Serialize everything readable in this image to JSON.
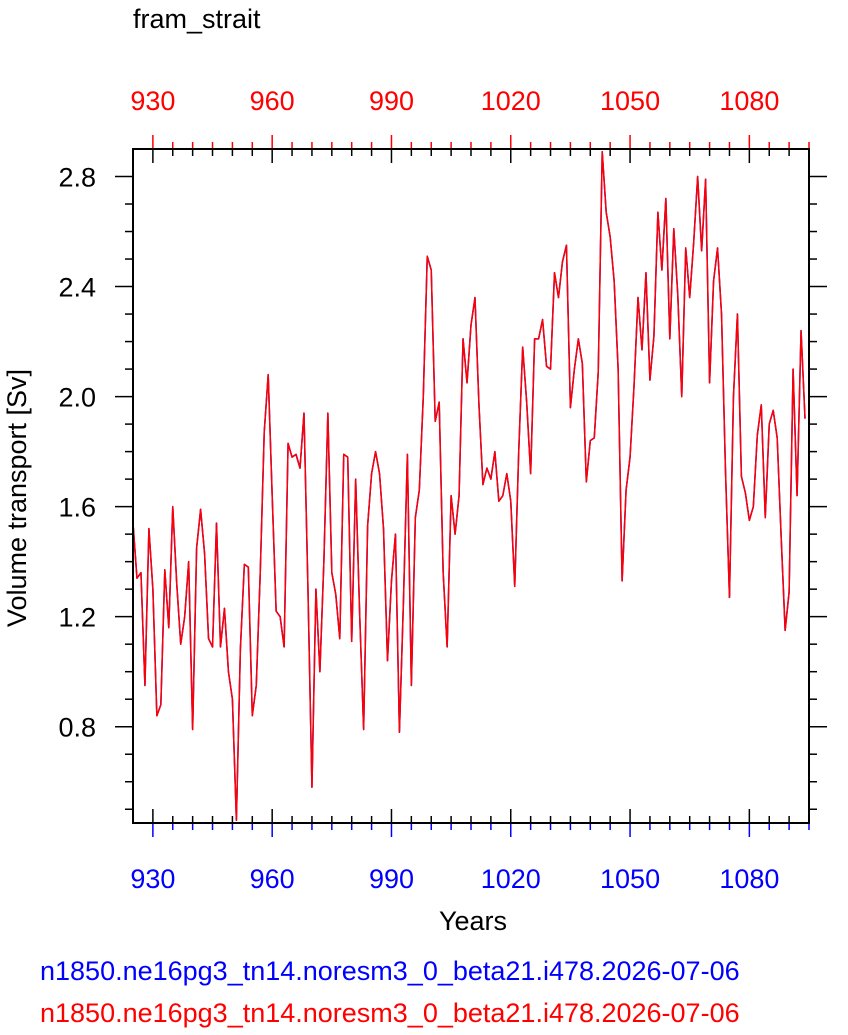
{
  "chart_data": {
    "type": "line",
    "title": "fram_strait",
    "xlabel": "Years",
    "ylabel": "Volume transport [Sv]",
    "xlim": [
      925,
      1095
    ],
    "ylim": [
      0.45,
      2.9
    ],
    "xticks": [
      930,
      960,
      990,
      1020,
      1050,
      1080
    ],
    "yticks": [
      0.8,
      1.2,
      1.6,
      2.0,
      2.4,
      2.8
    ],
    "xtick_labels": [
      "930",
      "960",
      "990",
      "1020",
      "1050",
      "1080"
    ],
    "ytick_labels": [
      "0.8",
      "1.2",
      "1.6",
      "2.0",
      "2.4",
      "2.8"
    ],
    "bottom_axis_color": "#0000ff",
    "top_axis_color": "#ff0000",
    "series": [
      {
        "name": "n1850.ne16pg3_tn14.noresm3_0_beta21.i478.2026-07-06",
        "color": "#0000ff",
        "x_start": 925,
        "values": [
          1.54,
          1.34,
          1.36,
          0.95,
          1.52,
          1.3,
          0.84,
          0.88,
          1.37,
          1.16,
          1.6,
          1.32,
          1.1,
          1.2,
          1.4,
          0.79,
          1.45,
          1.59,
          1.43,
          1.12,
          1.09,
          1.54,
          1.09,
          1.23,
          1.0,
          0.9,
          0.46,
          1.08,
          1.39,
          1.38,
          0.84,
          0.95,
          1.36,
          1.87,
          2.08,
          1.64,
          1.22,
          1.2,
          1.09,
          1.83,
          1.78,
          1.79,
          1.74,
          1.94,
          1.3,
          0.58,
          1.3,
          1.0,
          1.4,
          1.94,
          1.36,
          1.28,
          1.12,
          1.79,
          1.78,
          1.11,
          1.7,
          1.21,
          0.79,
          1.53,
          1.72,
          1.8,
          1.72,
          1.52,
          1.04,
          1.33,
          1.5,
          0.78,
          1.25,
          1.79,
          0.95,
          1.56,
          1.66,
          2.0,
          2.51,
          2.46,
          1.91,
          1.98,
          1.36,
          1.09,
          1.64,
          1.5,
          1.64,
          2.21,
          2.05,
          2.26,
          2.36,
          1.97,
          1.68,
          1.74,
          1.7,
          1.8,
          1.62,
          1.64,
          1.72,
          1.62,
          1.31,
          1.8,
          2.18,
          1.98,
          1.72,
          2.21,
          2.21,
          2.28,
          2.11,
          2.1,
          2.45,
          2.36,
          2.49,
          2.55,
          1.96,
          2.1,
          2.21,
          2.12,
          1.69,
          1.84,
          1.85,
          2.09,
          2.89,
          2.67,
          2.58,
          2.42,
          2.1,
          1.33,
          1.66,
          1.78,
          2.04,
          2.36,
          2.17,
          2.45,
          2.06,
          2.22,
          2.67,
          2.46,
          2.72,
          2.21,
          2.61,
          2.37,
          2.0,
          2.54,
          2.36,
          2.56,
          2.8,
          2.53,
          2.79,
          2.05,
          2.42,
          2.54,
          2.3,
          1.73,
          1.27,
          2.0,
          2.3,
          1.71,
          1.65,
          1.55,
          1.6,
          1.86,
          1.97,
          1.56,
          1.9,
          1.95,
          1.85,
          1.49,
          1.15,
          1.29,
          2.1,
          1.64,
          2.24,
          1.92
        ]
      },
      {
        "name": "n1850.ne16pg3_tn14.noresm3_0_beta21.i478.2026-07-06",
        "color": "#ff0000",
        "x_start": 925,
        "values": [
          1.54,
          1.34,
          1.36,
          0.95,
          1.52,
          1.3,
          0.84,
          0.88,
          1.37,
          1.16,
          1.6,
          1.32,
          1.1,
          1.2,
          1.4,
          0.79,
          1.45,
          1.59,
          1.43,
          1.12,
          1.09,
          1.54,
          1.09,
          1.23,
          1.0,
          0.9,
          0.46,
          1.08,
          1.39,
          1.38,
          0.84,
          0.95,
          1.36,
          1.87,
          2.08,
          1.64,
          1.22,
          1.2,
          1.09,
          1.83,
          1.78,
          1.79,
          1.74,
          1.94,
          1.3,
          0.58,
          1.3,
          1.0,
          1.4,
          1.94,
          1.36,
          1.28,
          1.12,
          1.79,
          1.78,
          1.11,
          1.7,
          1.21,
          0.79,
          1.53,
          1.72,
          1.8,
          1.72,
          1.52,
          1.04,
          1.33,
          1.5,
          0.78,
          1.25,
          1.79,
          0.95,
          1.56,
          1.66,
          2.0,
          2.51,
          2.46,
          1.91,
          1.98,
          1.36,
          1.09,
          1.64,
          1.5,
          1.64,
          2.21,
          2.05,
          2.26,
          2.36,
          1.97,
          1.68,
          1.74,
          1.7,
          1.8,
          1.62,
          1.64,
          1.72,
          1.62,
          1.31,
          1.8,
          2.18,
          1.98,
          1.72,
          2.21,
          2.21,
          2.28,
          2.11,
          2.1,
          2.45,
          2.36,
          2.49,
          2.55,
          1.96,
          2.1,
          2.21,
          2.12,
          1.69,
          1.84,
          1.85,
          2.09,
          2.89,
          2.67,
          2.58,
          2.42,
          2.1,
          1.33,
          1.66,
          1.78,
          2.04,
          2.36,
          2.17,
          2.45,
          2.06,
          2.22,
          2.67,
          2.46,
          2.72,
          2.21,
          2.61,
          2.37,
          2.0,
          2.54,
          2.36,
          2.56,
          2.8,
          2.53,
          2.79,
          2.05,
          2.42,
          2.54,
          2.3,
          1.73,
          1.27,
          2.0,
          2.3,
          1.71,
          1.65,
          1.55,
          1.6,
          1.86,
          1.97,
          1.56,
          1.9,
          1.95,
          1.85,
          1.49,
          1.15,
          1.29,
          2.1,
          1.64,
          2.24,
          1.92
        ]
      }
    ]
  }
}
